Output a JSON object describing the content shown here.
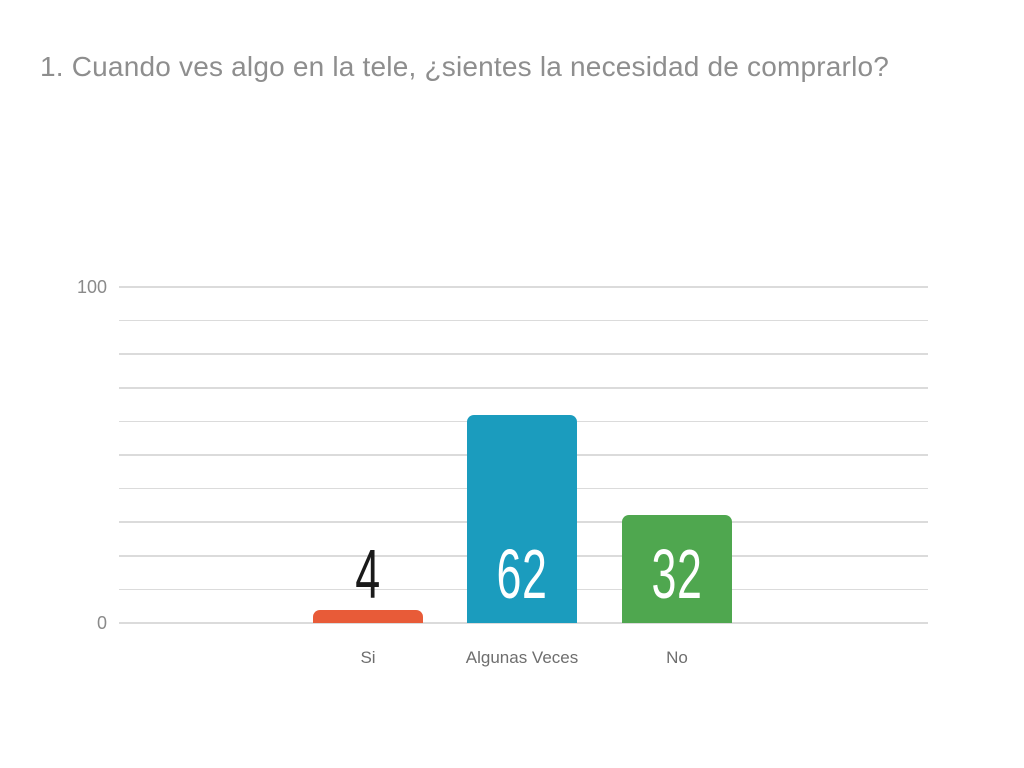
{
  "chart_data": {
    "type": "bar",
    "title": "1. Cuando ves algo en la tele, ¿sientes la necesidad de comprarlo?",
    "categories": [
      "Si",
      "Algunas Veces",
      "No"
    ],
    "values": [
      4,
      62,
      32
    ],
    "bar_colors": [
      "#E85B38",
      "#1B9CBE",
      "#4FA74F"
    ],
    "value_label_colors": [
      "#1A1A1A",
      "#FFFFFF",
      "#FFFFFF"
    ],
    "xlabel": "",
    "ylabel": "",
    "ylim": [
      0,
      100
    ],
    "gridline_step": 10,
    "grid": "horizontal",
    "legend": "none",
    "ytick_labels_shown": [
      "100",
      "0"
    ]
  },
  "colors": {
    "background": "#FFFFFF",
    "title_text": "#8E8E8E",
    "axis_tick_text": "#8A8A8A",
    "category_text": "#6E6E6E",
    "gridline": "#DBDBDB"
  }
}
